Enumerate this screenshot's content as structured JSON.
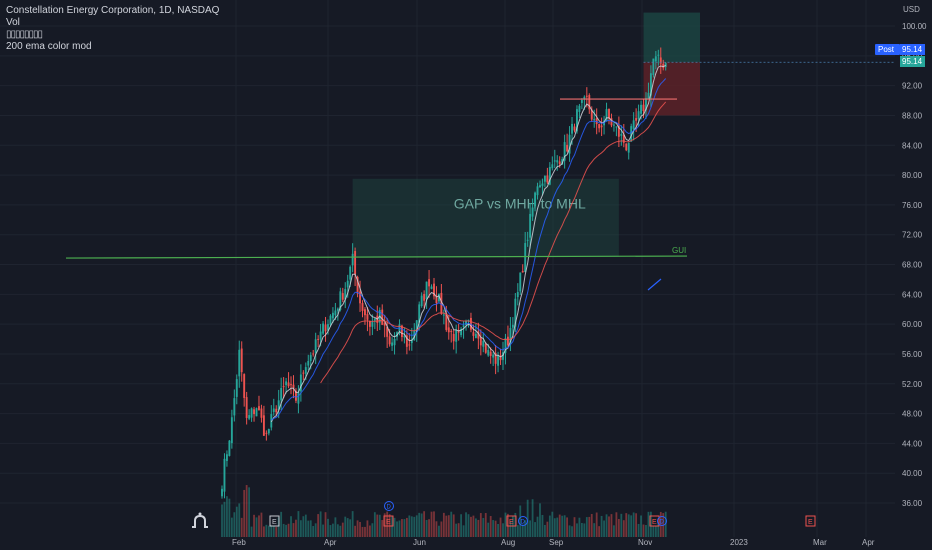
{
  "legend": {
    "title": "Constellation Energy Corporation, 1D, NASDAQ",
    "vol": "Vol",
    "glyphs": "▯▯▯▯▯▯▯▯",
    "ema_label": "200 ema color mod"
  },
  "price_axis": {
    "currency": "USD"
  },
  "badges": {
    "post_label": "Post",
    "post_value": "95.14",
    "last_value": "95.14"
  },
  "annotations": {
    "box_label": "GAP vs MHH to MHL",
    "line_label": "GUI"
  },
  "events": {
    "earnings": "E",
    "dividend": "D"
  },
  "colors": {
    "background": "#161a25",
    "up": "#26a69a",
    "down": "#ef5350",
    "ema_fast": "#d1d4dc",
    "ema_mid": "#2962ff",
    "ema_slow": "#ef5350",
    "support_line": "#4caf50",
    "resistance_line": "#f06e6e",
    "gap_box": "#1e4a43",
    "target_box": "#1c4a46",
    "stop_box": "#5c2228"
  },
  "chart_data": {
    "type": "candlestick",
    "symbol": "Constellation Energy Corporation",
    "interval": "1D",
    "exchange": "NASDAQ",
    "y_ticks": [
      36,
      40,
      44,
      48,
      52,
      56,
      60,
      64,
      68,
      72,
      76,
      80,
      84,
      88,
      92,
      96,
      100
    ],
    "x_labels": [
      "Feb",
      "Apr",
      "Jun",
      "Aug",
      "Sep",
      "Nov",
      "2023",
      "Mar",
      "Apr"
    ],
    "ylim": [
      34.5,
      102
    ],
    "last_price": 95.14,
    "price_path": [
      [
        0,
        39
      ],
      [
        4,
        47
      ],
      [
        7,
        56
      ],
      [
        10,
        47
      ],
      [
        14,
        49
      ],
      [
        18,
        45
      ],
      [
        22,
        49
      ],
      [
        26,
        52
      ],
      [
        30,
        50
      ],
      [
        34,
        55
      ],
      [
        38,
        57
      ],
      [
        42,
        60
      ],
      [
        46,
        62
      ],
      [
        50,
        65
      ],
      [
        53,
        68.5
      ],
      [
        56,
        63
      ],
      [
        60,
        60
      ],
      [
        64,
        61
      ],
      [
        68,
        57
      ],
      [
        72,
        59
      ],
      [
        76,
        57
      ],
      [
        80,
        62
      ],
      [
        84,
        66
      ],
      [
        88,
        63
      ],
      [
        92,
        59
      ],
      [
        96,
        58
      ],
      [
        100,
        60
      ],
      [
        104,
        59
      ],
      [
        108,
        56
      ],
      [
        112,
        55
      ],
      [
        116,
        58
      ],
      [
        120,
        64
      ],
      [
        124,
        72
      ],
      [
        128,
        79
      ],
      [
        132,
        80
      ],
      [
        136,
        82
      ],
      [
        140,
        84
      ],
      [
        144,
        88
      ],
      [
        148,
        90
      ],
      [
        152,
        86
      ],
      [
        156,
        88
      ],
      [
        160,
        86
      ],
      [
        164,
        84
      ],
      [
        168,
        87
      ],
      [
        172,
        90
      ],
      [
        175,
        95.5
      ],
      [
        178,
        95
      ],
      [
        180,
        95.14
      ]
    ],
    "support_level": 69,
    "resistance_level": 90.2,
    "target_level": 101.8,
    "stop_level": 88
  }
}
